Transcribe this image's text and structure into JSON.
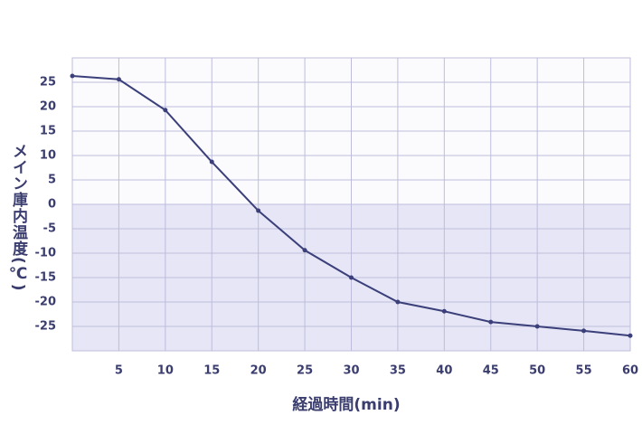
{
  "chart_data": {
    "type": "line",
    "x_label": "経過時間(min)",
    "y_label": "メイン庫内温度(℃)",
    "x": [
      0,
      5,
      10,
      15,
      20,
      25,
      30,
      35,
      40,
      45,
      50,
      55,
      60
    ],
    "series": [
      {
        "color": "#3b3f7a",
        "values": [
          26.3,
          25.6,
          19.3,
          8.7,
          -1.3,
          -9.4,
          -15.0,
          -20.0,
          -21.9,
          -24.1,
          -25.0,
          -25.9,
          -26.9
        ]
      }
    ],
    "xlim": [
      0,
      60
    ],
    "xticks": [
      5,
      10,
      15,
      20,
      25,
      30,
      35,
      40,
      45,
      50,
      55,
      60
    ],
    "ylim": [
      -30,
      30
    ],
    "yticks": [
      -25,
      -20,
      -15,
      -10,
      -5,
      0,
      5,
      10,
      15,
      20,
      25
    ],
    "grid": true,
    "grid_color": "#bdbddb",
    "negative_fill": "#e6e6f6",
    "plot_fill": "#fbfbfe"
  }
}
